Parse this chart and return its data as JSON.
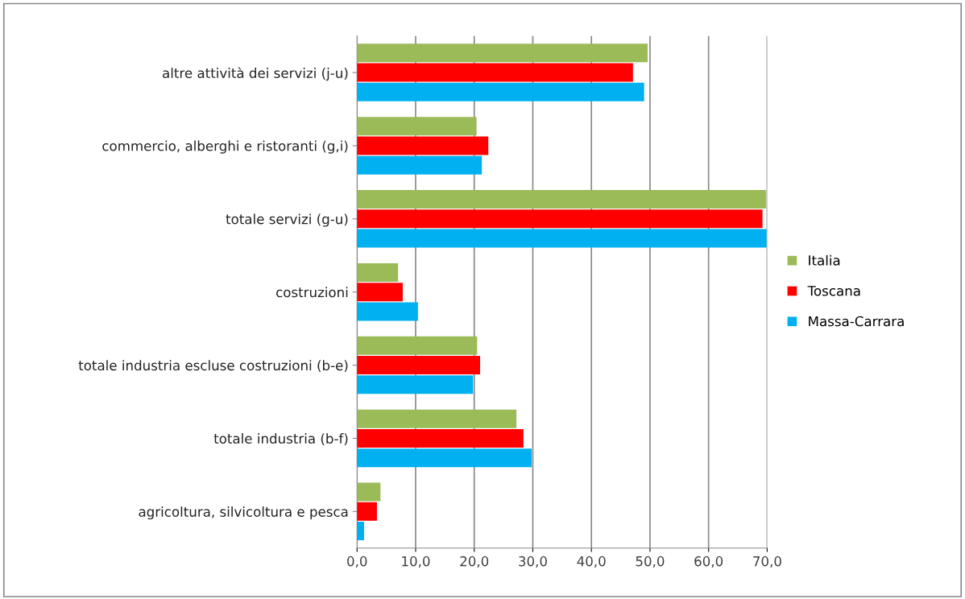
{
  "chart_data": {
    "type": "bar",
    "orientation": "horizontal",
    "categories": [
      "altre attività dei servizi (j-u)",
      "commercio, alberghi e ristoranti (g,i)",
      "totale servizi (g-u)",
      "costruzioni",
      "totale industria escluse costruzioni (b-e)",
      "totale industria (b-f)",
      "agricoltura, silvicoltura e pesca"
    ],
    "series": [
      {
        "name": "Italia",
        "color": "#9bbb59",
        "values": [
          49.6,
          20.4,
          69.8,
          7.0,
          20.5,
          27.2,
          4.0
        ]
      },
      {
        "name": "Toscana",
        "color": "#ff0000",
        "values": [
          47.1,
          22.4,
          69.2,
          7.8,
          21.0,
          28.4,
          3.4
        ]
      },
      {
        "name": "Massa-Carrara",
        "color": "#00b0f0",
        "values": [
          49.0,
          21.3,
          69.9,
          10.4,
          19.8,
          29.8,
          1.2
        ]
      }
    ],
    "xlim": [
      0,
      70
    ],
    "xticks": [
      {
        "value": 0,
        "label": "0,0"
      },
      {
        "value": 10,
        "label": "10,0"
      },
      {
        "value": 20,
        "label": "20,0"
      },
      {
        "value": 30,
        "label": "30,0"
      },
      {
        "value": 40,
        "label": "40,0"
      },
      {
        "value": 50,
        "label": "50,0"
      },
      {
        "value": 60,
        "label": "60,0"
      },
      {
        "value": 70,
        "label": "70,0"
      }
    ],
    "grid": "x",
    "legend": "right"
  }
}
